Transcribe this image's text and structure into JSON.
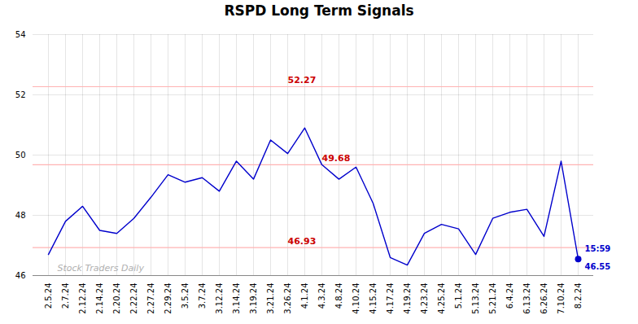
{
  "chart_data": {
    "type": "line",
    "title": "RSPD Long Term Signals",
    "categories": [
      "2.5.24",
      "2.7.24",
      "2.12.24",
      "2.14.24",
      "2.20.24",
      "2.22.24",
      "2.27.24",
      "2.29.24",
      "3.5.24",
      "3.7.24",
      "3.12.24",
      "3.14.24",
      "3.19.24",
      "3.21.24",
      "3.26.24",
      "4.1.24",
      "4.3.24",
      "4.8.24",
      "4.10.24",
      "4.15.24",
      "4.17.24",
      "4.19.24",
      "4.23.24",
      "4.25.24",
      "5.1.24",
      "5.13.24",
      "5.21.24",
      "6.4.24",
      "6.13.24",
      "6.26.24",
      "7.10.24",
      "8.2.24"
    ],
    "values": [
      46.7,
      47.8,
      48.3,
      47.5,
      47.4,
      47.9,
      48.6,
      49.35,
      49.1,
      49.25,
      48.8,
      49.8,
      49.2,
      50.5,
      50.05,
      50.9,
      49.68,
      49.2,
      49.6,
      48.4,
      46.6,
      46.35,
      47.4,
      47.7,
      47.55,
      46.7,
      47.9,
      48.1,
      48.2,
      47.3,
      49.8,
      46.55
    ],
    "color": "#0000cc",
    "ylim": [
      46,
      54
    ],
    "yticks": [
      46,
      48,
      50,
      52,
      54
    ],
    "grid": true,
    "hlines": {
      "values": [
        52.27,
        49.68,
        46.93
      ],
      "color": "#ffb3b3"
    },
    "annotations": [
      {
        "text": "52.27",
        "x": "3.26.24",
        "y": 52.27,
        "color": "#cc0000"
      },
      {
        "text": "49.68",
        "x": "4.3.24",
        "y": 49.68,
        "color": "#cc0000"
      },
      {
        "text": "46.93",
        "x": "3.26.24",
        "y": 46.93,
        "color": "#cc0000"
      }
    ],
    "last_point": {
      "x": "8.2.24",
      "y": 46.55,
      "label": "15:59",
      "value_label": "46.55",
      "color": "#0000cc"
    },
    "watermark": {
      "text": "Stock Traders Daily",
      "color": "#b0b0b0"
    }
  }
}
